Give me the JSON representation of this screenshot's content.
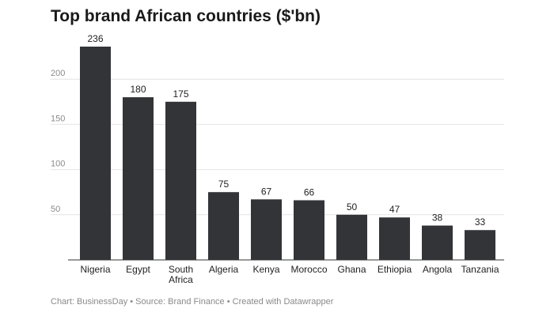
{
  "chart_data": {
    "type": "bar",
    "title": "Top brand African countries ($'bn)",
    "categories": [
      [
        "Nigeria"
      ],
      [
        "Egypt"
      ],
      [
        "South",
        "Africa"
      ],
      [
        "Algeria"
      ],
      [
        "Kenya"
      ],
      [
        "Morocco"
      ],
      [
        "Ghana"
      ],
      [
        "Ethiopia"
      ],
      [
        "Angola"
      ],
      [
        "Tanzania"
      ]
    ],
    "values": [
      236,
      180,
      175,
      75,
      67,
      66,
      50,
      47,
      38,
      33
    ],
    "ylim": [
      0,
      250
    ],
    "yticks": [
      50,
      100,
      150,
      200
    ],
    "grid": true,
    "bar_color": "#323437",
    "footer": "Chart: BusinessDay • Source: Brand Finance • Created with Datawrapper"
  }
}
